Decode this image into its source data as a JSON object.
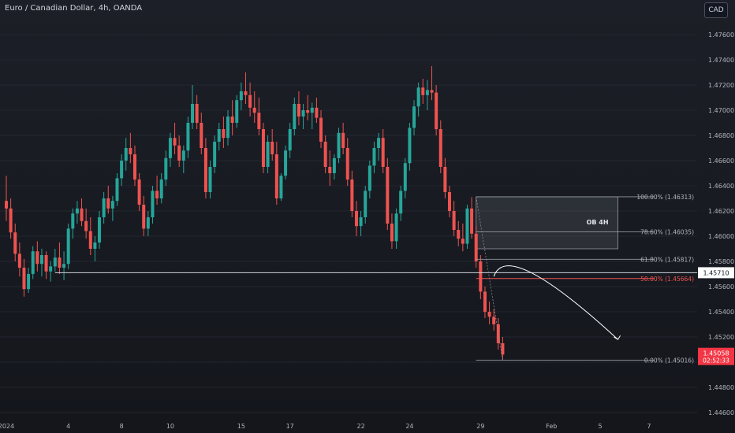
{
  "header": {
    "title": "Euro / Canadian Dollar, 4h, OANDA",
    "currency": "CAD"
  },
  "colors": {
    "up": "#26a69a",
    "down": "#ef5350",
    "background": "#1a1d24",
    "axis_text": "#b2b5be",
    "fib_line": "#9598a1",
    "fib_50": "#ef5350",
    "ob_fill": "#787b86",
    "price_badge": "#f23645"
  },
  "chart_data": {
    "type": "candlestick",
    "symbol": "Euro / Canadian Dollar",
    "timeframe": "4h",
    "exchange": "OANDA",
    "ylim": [
      1.4455,
      1.4775
    ],
    "yticks": [
      "1.44600",
      "1.44800",
      "1.45000",
      "1.45200",
      "1.45400",
      "1.45600",
      "1.45800",
      "1.46000",
      "1.46200",
      "1.46400",
      "1.46600",
      "1.46800",
      "1.47000",
      "1.47200",
      "1.47400",
      "1.47600"
    ],
    "xticks": [
      {
        "label": "2024",
        "i": 0
      },
      {
        "label": "4",
        "i": 14
      },
      {
        "label": "8",
        "i": 26
      },
      {
        "label": "10",
        "i": 37
      },
      {
        "label": "15",
        "i": 53
      },
      {
        "label": "17",
        "i": 64
      },
      {
        "label": "22",
        "i": 80
      },
      {
        "label": "24",
        "i": 91
      },
      {
        "label": "29",
        "i": 107
      },
      {
        "label": "Feb",
        "i": 123
      },
      {
        "label": "5",
        "i": 134
      },
      {
        "label": "7",
        "i": 145
      }
    ],
    "candles": [
      [
        1.4628,
        1.4648,
        1.4612,
        1.4622
      ],
      [
        1.4622,
        1.463,
        1.4598,
        1.4603
      ],
      [
        1.4603,
        1.461,
        1.458,
        1.4586
      ],
      [
        1.4586,
        1.4595,
        1.4568,
        1.4575
      ],
      [
        1.4575,
        1.4582,
        1.4552,
        1.4558
      ],
      [
        1.4558,
        1.4575,
        1.4555,
        1.457
      ],
      [
        1.457,
        1.4592,
        1.4566,
        1.4588
      ],
      [
        1.4588,
        1.4596,
        1.4572,
        1.4578
      ],
      [
        1.4578,
        1.459,
        1.4568,
        1.4585
      ],
      [
        1.4585,
        1.4588,
        1.4566,
        1.4572
      ],
      [
        1.4572,
        1.458,
        1.4564,
        1.4576
      ],
      [
        1.4576,
        1.459,
        1.4572,
        1.4583
      ],
      [
        1.4583,
        1.4595,
        1.457,
        1.4575
      ],
      [
        1.4575,
        1.4588,
        1.4565,
        1.4578
      ],
      [
        1.4578,
        1.461,
        1.4574,
        1.4606
      ],
      [
        1.4606,
        1.4622,
        1.4598,
        1.4618
      ],
      [
        1.4618,
        1.4628,
        1.461,
        1.4622
      ],
      [
        1.4622,
        1.463,
        1.4608,
        1.4612
      ],
      [
        1.4612,
        1.4622,
        1.4598,
        1.4604
      ],
      [
        1.4604,
        1.4615,
        1.4585,
        1.459
      ],
      [
        1.459,
        1.46,
        1.458,
        1.4595
      ],
      [
        1.4595,
        1.462,
        1.459,
        1.4615
      ],
      [
        1.4615,
        1.4635,
        1.461,
        1.463
      ],
      [
        1.463,
        1.464,
        1.4618,
        1.4622
      ],
      [
        1.4622,
        1.4632,
        1.4612,
        1.4628
      ],
      [
        1.4628,
        1.465,
        1.4624,
        1.4646
      ],
      [
        1.4646,
        1.4665,
        1.464,
        1.466
      ],
      [
        1.466,
        1.4678,
        1.4652,
        1.467
      ],
      [
        1.467,
        1.4682,
        1.4658,
        1.4665
      ],
      [
        1.4665,
        1.4672,
        1.464,
        1.4645
      ],
      [
        1.4645,
        1.465,
        1.462,
        1.4625
      ],
      [
        1.4625,
        1.4632,
        1.46,
        1.4606
      ],
      [
        1.4606,
        1.462,
        1.46,
        1.4615
      ],
      [
        1.4615,
        1.464,
        1.461,
        1.4636
      ],
      [
        1.4636,
        1.4648,
        1.4625,
        1.463
      ],
      [
        1.463,
        1.465,
        1.4626,
        1.4645
      ],
      [
        1.4645,
        1.4668,
        1.464,
        1.4662
      ],
      [
        1.4662,
        1.4682,
        1.4655,
        1.4678
      ],
      [
        1.4678,
        1.469,
        1.4665,
        1.4672
      ],
      [
        1.4672,
        1.468,
        1.4655,
        1.466
      ],
      [
        1.466,
        1.4672,
        1.465,
        1.4668
      ],
      [
        1.4668,
        1.4695,
        1.4662,
        1.469
      ],
      [
        1.469,
        1.472,
        1.4685,
        1.4705
      ],
      [
        1.4705,
        1.4712,
        1.4685,
        1.469
      ],
      [
        1.469,
        1.4698,
        1.4665,
        1.467
      ],
      [
        1.467,
        1.4678,
        1.463,
        1.4635
      ],
      [
        1.4635,
        1.466,
        1.463,
        1.4655
      ],
      [
        1.4655,
        1.468,
        1.465,
        1.4675
      ],
      [
        1.4675,
        1.469,
        1.4668,
        1.4685
      ],
      [
        1.4685,
        1.4695,
        1.467,
        1.4678
      ],
      [
        1.4678,
        1.47,
        1.4672,
        1.4695
      ],
      [
        1.4695,
        1.4708,
        1.468,
        1.469
      ],
      [
        1.469,
        1.4712,
        1.4686,
        1.4708
      ],
      [
        1.4708,
        1.4722,
        1.47,
        1.4715
      ],
      [
        1.4715,
        1.473,
        1.4705,
        1.4712
      ],
      [
        1.4712,
        1.4722,
        1.4695,
        1.4702
      ],
      [
        1.4702,
        1.4715,
        1.469,
        1.4698
      ],
      [
        1.4698,
        1.471,
        1.468,
        1.4685
      ],
      [
        1.4685,
        1.469,
        1.465,
        1.4655
      ],
      [
        1.4655,
        1.468,
        1.465,
        1.4675
      ],
      [
        1.4675,
        1.4685,
        1.466,
        1.4665
      ],
      [
        1.4665,
        1.4675,
        1.4625,
        1.463
      ],
      [
        1.463,
        1.465,
        1.4628,
        1.4648
      ],
      [
        1.4648,
        1.4672,
        1.4645,
        1.4668
      ],
      [
        1.4668,
        1.469,
        1.4662,
        1.4685
      ],
      [
        1.4685,
        1.471,
        1.468,
        1.4705
      ],
      [
        1.4705,
        1.4715,
        1.4688,
        1.4695
      ],
      [
        1.4695,
        1.4705,
        1.4685,
        1.47
      ],
      [
        1.47,
        1.4712,
        1.4692,
        1.4698
      ],
      [
        1.4698,
        1.4706,
        1.4685,
        1.4702
      ],
      [
        1.4702,
        1.471,
        1.469,
        1.4694
      ],
      [
        1.4694,
        1.47,
        1.467,
        1.4675
      ],
      [
        1.4675,
        1.468,
        1.465,
        1.4655
      ],
      [
        1.4655,
        1.4668,
        1.464,
        1.465
      ],
      [
        1.465,
        1.4665,
        1.4645,
        1.4662
      ],
      [
        1.4662,
        1.4686,
        1.4658,
        1.4682
      ],
      [
        1.4682,
        1.469,
        1.4665,
        1.467
      ],
      [
        1.467,
        1.4678,
        1.464,
        1.4645
      ],
      [
        1.4645,
        1.4652,
        1.4615,
        1.462
      ],
      [
        1.462,
        1.4628,
        1.46,
        1.4608
      ],
      [
        1.4608,
        1.462,
        1.46,
        1.4615
      ],
      [
        1.4615,
        1.464,
        1.461,
        1.4636
      ],
      [
        1.4636,
        1.466,
        1.463,
        1.4656
      ],
      [
        1.4656,
        1.4675,
        1.465,
        1.467
      ],
      [
        1.467,
        1.4682,
        1.466,
        1.4678
      ],
      [
        1.4678,
        1.4685,
        1.465,
        1.4655
      ],
      [
        1.4655,
        1.4662,
        1.4605,
        1.461
      ],
      [
        1.461,
        1.4618,
        1.459,
        1.4596
      ],
      [
        1.4596,
        1.4622,
        1.459,
        1.4618
      ],
      [
        1.4618,
        1.464,
        1.4612,
        1.4636
      ],
      [
        1.4636,
        1.4662,
        1.463,
        1.4658
      ],
      [
        1.4658,
        1.469,
        1.4652,
        1.4686
      ],
      [
        1.4686,
        1.4708,
        1.468,
        1.4703
      ],
      [
        1.4703,
        1.4722,
        1.4695,
        1.4718
      ],
      [
        1.4718,
        1.4725,
        1.4705,
        1.4712
      ],
      [
        1.4712,
        1.4724,
        1.47,
        1.4716
      ],
      [
        1.4716,
        1.4735,
        1.4708,
        1.4714
      ],
      [
        1.4714,
        1.472,
        1.468,
        1.4685
      ],
      [
        1.4685,
        1.4692,
        1.465,
        1.4655
      ],
      [
        1.4655,
        1.4662,
        1.463,
        1.4635
      ],
      [
        1.4635,
        1.464,
        1.4615,
        1.462
      ],
      [
        1.462,
        1.4628,
        1.46,
        1.4605
      ],
      [
        1.4605,
        1.4612,
        1.4592,
        1.4598
      ],
      [
        1.4598,
        1.461,
        1.4588,
        1.4594
      ],
      [
        1.4594,
        1.4625,
        1.459,
        1.4622
      ],
      [
        1.4622,
        1.4631,
        1.4598,
        1.4602
      ],
      [
        1.4602,
        1.4608,
        1.4575,
        1.458
      ],
      [
        1.458,
        1.4585,
        1.455,
        1.4556
      ],
      [
        1.4556,
        1.456,
        1.4535,
        1.454
      ],
      [
        1.454,
        1.4548,
        1.453,
        1.4536
      ],
      [
        1.4536,
        1.4542,
        1.4525,
        1.453
      ],
      [
        1.453,
        1.4535,
        1.451,
        1.4515
      ],
      [
        1.4515,
        1.452,
        1.4502,
        1.4506
      ]
    ],
    "horizontal_line": {
      "price": 1.4571,
      "label": "1.45710"
    },
    "fib_levels": [
      {
        "label": "100.00% (1.46313)",
        "price": 1.46313,
        "highlight": false
      },
      {
        "label": "78.60% (1.46035)",
        "price": 1.46035,
        "highlight": false
      },
      {
        "label": "61.80% (1.45817)",
        "price": 1.45817,
        "highlight": false
      },
      {
        "label": "50.00% (1.45664)",
        "price": 1.45664,
        "highlight": true
      },
      {
        "label": "0.00% (1.45016)",
        "price": 1.45016,
        "highlight": false
      }
    ],
    "fib_start_i": 106,
    "ob_zone": {
      "label": "OB 4H",
      "top": 1.46313,
      "bottom": 1.459,
      "start_i": 106,
      "end_i": 138
    },
    "projection_arrow": {
      "start_i": 110,
      "start_price": 1.4568,
      "peak_i": 113,
      "peak_price": 1.458,
      "end_i": 138,
      "end_price": 1.4518
    },
    "last_price": {
      "label": "1.45058",
      "countdown": "02:52:33",
      "price": 1.45058
    }
  }
}
